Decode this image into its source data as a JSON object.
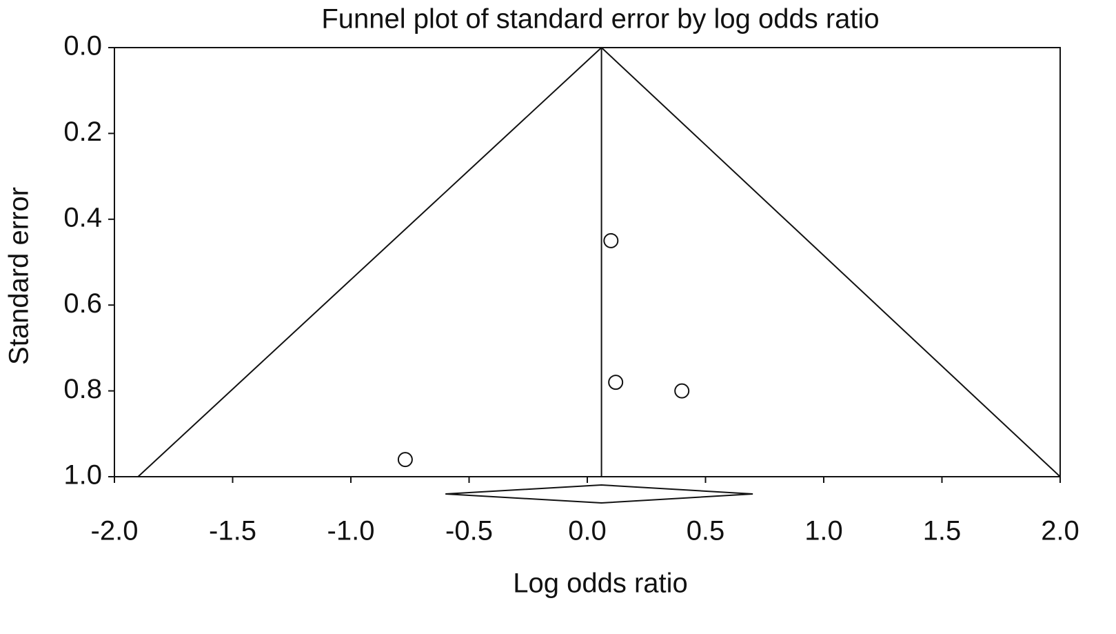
{
  "chart_data": {
    "type": "scatter",
    "title": "Funnel plot of standard error by log odds ratio",
    "x_label": "Log odds ratio",
    "y_label": "Standard error",
    "xlim": [
      -2.0,
      2.0
    ],
    "ylim": [
      0.0,
      1.0
    ],
    "y_inverted": true,
    "xticks": [
      {
        "value": -2.0,
        "label": "-2.0"
      },
      {
        "value": -1.5,
        "label": "-1.5"
      },
      {
        "value": -1.0,
        "label": "-1.0"
      },
      {
        "value": -0.5,
        "label": "-0.5"
      },
      {
        "value": 0.0,
        "label": "0.0"
      },
      0.5,
      {
        "value": 1.0,
        "label": "1.0"
      },
      1.5,
      {
        "value": 2.0,
        "label": "2.0"
      }
    ],
    "yticks": [
      {
        "value": 0.0,
        "label": "0.0"
      },
      0.2,
      0.4,
      0.6,
      0.8,
      {
        "value": 1.0,
        "label": "1.0"
      }
    ],
    "color": "#111111",
    "series": [
      {
        "x": [
          0.1,
          0.12,
          0.4,
          -0.77
        ],
        "values": [
          0.45,
          0.78,
          0.8,
          0.96
        ]
      }
    ],
    "funnel": [
      {
        "x": [
          0.06,
          -1.9
        ],
        "values": [
          0.0,
          1.0
        ]
      },
      {
        "x": [
          0.06,
          2.0
        ],
        "values": [
          0.0,
          1.0
        ]
      }
    ],
    "summary": {
      "estimate": 0.06,
      "lower": -0.6,
      "upper": 0.7
    }
  }
}
